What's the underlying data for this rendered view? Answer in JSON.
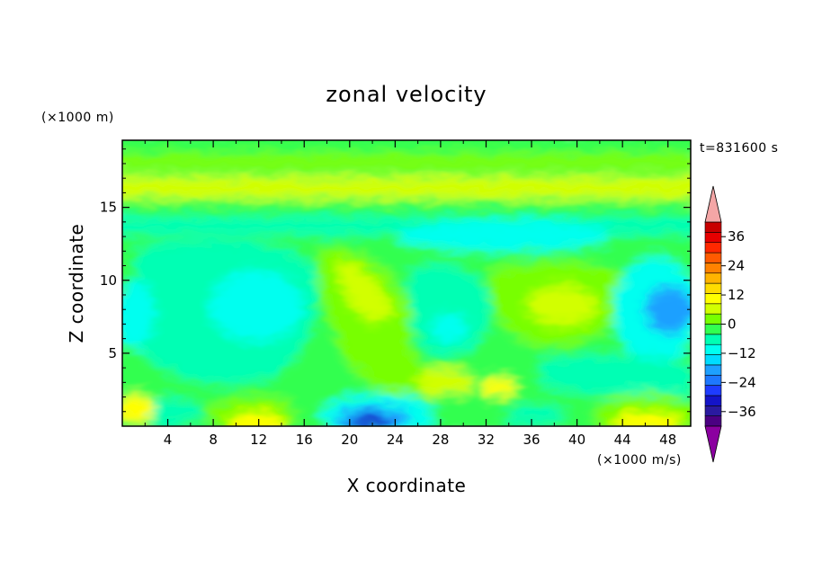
{
  "chart_data": {
    "type": "heatmap",
    "title": "zonal velocity",
    "xlabel": "X coordinate",
    "ylabel": "Z coordinate",
    "x_units": "(×1000 m/s)",
    "y_units": "(×1000 m)",
    "time_label": "t=831600 s",
    "xlim": [
      0,
      50
    ],
    "ylim": [
      0,
      19.6
    ],
    "x_ticks": [
      4,
      8,
      12,
      16,
      20,
      24,
      28,
      32,
      36,
      40,
      44,
      48
    ],
    "x_tick_labels": [
      "4",
      "8",
      "12",
      "16",
      "20",
      "24",
      "28",
      "32",
      "36",
      "40",
      "44",
      "48"
    ],
    "y_ticks": [
      5,
      10,
      15
    ],
    "y_tick_labels": [
      "5",
      "10",
      "15"
    ],
    "colorbar": {
      "levels": [
        -42,
        -39,
        -36,
        -33,
        -30,
        -27,
        -24,
        -21,
        -18,
        -15,
        -12,
        -9,
        -6,
        -3,
        0,
        3,
        6,
        9,
        12,
        15,
        18,
        21,
        24,
        27,
        30,
        33,
        36,
        39,
        42
      ],
      "tick_values": [
        -36,
        -24,
        -12,
        0,
        12,
        24,
        36
      ],
      "tick_labels": [
        "−36",
        "−24",
        "−12",
        "0",
        "12",
        "24",
        "36"
      ],
      "colors": [
        "#4b0082",
        "#2a1aa0",
        "#1414c8",
        "#1e3cff",
        "#1e78ff",
        "#1ea0ff",
        "#00dcff",
        "#00fff0",
        "#00ffb4",
        "#32ff50",
        "#78ff00",
        "#d2ff00",
        "#ffff00",
        "#ffdc00",
        "#ffb400",
        "#ff8200",
        "#ff5a00",
        "#ff2800",
        "#e60000",
        "#c80000"
      ],
      "over_color": "#f4a6a6",
      "under_color": "#8b00a0"
    },
    "field_summary": [
      {
        "x": [
          0,
          50
        ],
        "z": [
          17,
          18.5
        ],
        "value": 8,
        "feature": "upper jet band"
      },
      {
        "x": [
          0,
          50
        ],
        "z": [
          13,
          15.5
        ],
        "value": -3,
        "feature": "weak easterly band"
      },
      {
        "x": [
          8,
          12
        ],
        "z": [
          6,
          10
        ],
        "value": -10,
        "feature": "left easterly core"
      },
      {
        "x": [
          18,
          24
        ],
        "z": [
          5,
          12
        ],
        "value": 7,
        "feature": "tilted westerly tongue"
      },
      {
        "x": [
          46,
          50
        ],
        "z": [
          6,
          9
        ],
        "value": -18,
        "feature": "right easterly core"
      },
      {
        "x": [
          20,
          24
        ],
        "z": [
          0,
          1
        ],
        "value": -28,
        "feature": "surface easterly minimum"
      },
      {
        "x": [
          10,
          13
        ],
        "z": [
          0,
          1
        ],
        "value": 14,
        "feature": "surface westerly maximum"
      },
      {
        "x": [
          43,
          48
        ],
        "z": [
          0,
          1
        ],
        "value": 14,
        "feature": "surface westerly maximum"
      }
    ]
  }
}
